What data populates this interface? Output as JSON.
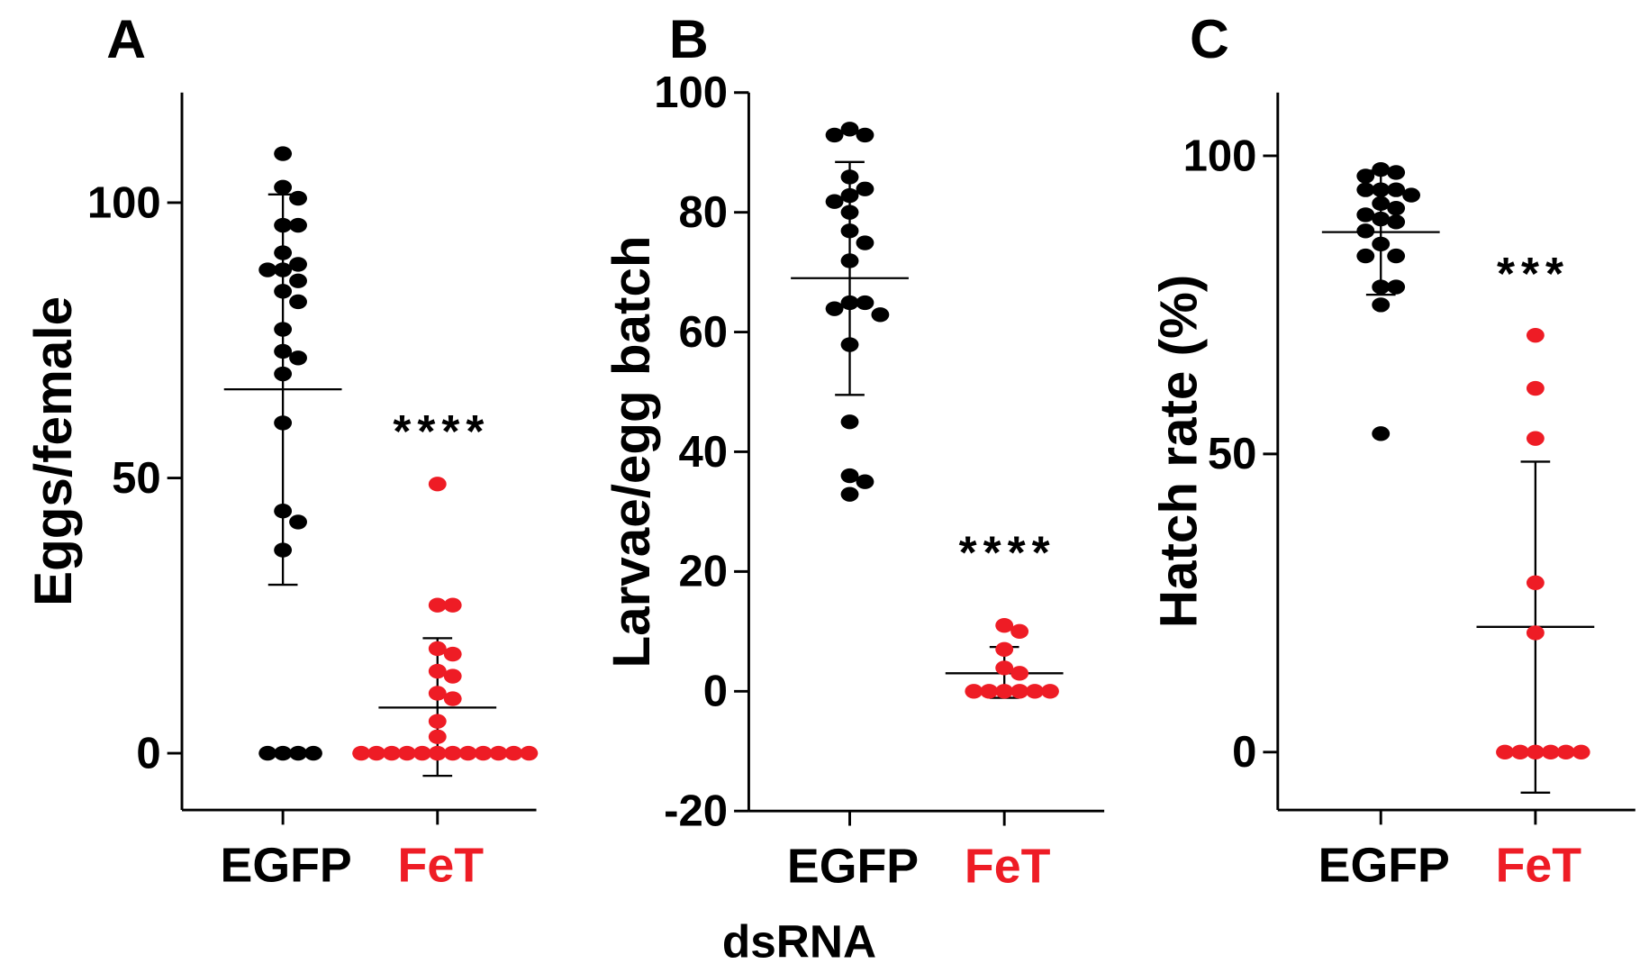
{
  "colors": {
    "egfp": "#000000",
    "fet": "#ee1c25",
    "axis": "#000000"
  },
  "xlabel_shared": "dsRNA",
  "chart_data": [
    {
      "type": "scatter",
      "panel": "A",
      "ylabel": "Eggs/female",
      "ylim": [
        -10.3,
        120
      ],
      "yticks": [
        0,
        50,
        100
      ],
      "ytick_labels": [
        "0",
        "50",
        "100"
      ],
      "categories": [
        "EGFP",
        "FeT"
      ],
      "significance": "****",
      "series": [
        {
          "name": "EGFP",
          "values": [
            108.9,
            102.8,
            100.8,
            95.9,
            95.9,
            90.9,
            88.8,
            87.8,
            87.8,
            85.8,
            83.9,
            82.0,
            77.0,
            73.0,
            71.8,
            68.9,
            60.0,
            44.0,
            42.0,
            36.9,
            0,
            0,
            0,
            0
          ],
          "mean": 66.1,
          "sd_low": 30.6,
          "sd_high": 101.5
        },
        {
          "name": "FeT",
          "values": [
            48.9,
            26.9,
            26.9,
            19.0,
            18.0,
            14.9,
            14.0,
            10.9,
            9.9,
            5.8,
            3.0,
            0,
            0,
            0,
            0,
            0,
            0,
            0,
            0,
            0,
            0,
            0,
            0
          ],
          "mean": 8.3,
          "sd_low": -4.1,
          "sd_high": 20.9
        }
      ]
    },
    {
      "type": "scatter",
      "panel": "B",
      "ylabel": "Larvae/egg batch",
      "ylim": [
        -20,
        100
      ],
      "yticks": [
        -20,
        0,
        20,
        40,
        60,
        80,
        100
      ],
      "ytick_labels": [
        "-20",
        "0",
        "20",
        "40",
        "60",
        "80",
        "100"
      ],
      "categories": [
        "EGFP",
        "FeT"
      ],
      "significance": "****",
      "series": [
        {
          "name": "EGFP",
          "values": [
            93.9,
            92.9,
            92.9,
            85.9,
            83.9,
            82.8,
            81.8,
            80.0,
            76.9,
            74.9,
            71.9,
            64.9,
            64.9,
            63.9,
            62.9,
            57.9,
            45.0,
            36.0,
            35.0,
            32.9
          ],
          "mean": 69.0,
          "sd_low": 49.5,
          "sd_high": 88.4
        },
        {
          "name": "FeT",
          "values": [
            11.0,
            10.0,
            7.0,
            3.9,
            3.0,
            0,
            0,
            0,
            0,
            0,
            0
          ],
          "mean": 3.0,
          "sd_low": -1.1,
          "sd_high": 7.4
        }
      ]
    },
    {
      "type": "scatter",
      "panel": "C",
      "ylabel": "Hatch rate (%)",
      "ylim": [
        -9.7,
        110.6
      ],
      "yticks": [
        0,
        50,
        100
      ],
      "ytick_labels": [
        "0",
        "50",
        "100"
      ],
      "categories": [
        "EGFP",
        "FeT"
      ],
      "significance": "***",
      "series": [
        {
          "name": "EGFP",
          "values": [
            97.7,
            97.2,
            96.6,
            94.3,
            94.3,
            94.3,
            93.4,
            92.0,
            91.2,
            90.1,
            89.4,
            88.9,
            87.4,
            85.2,
            83.2,
            83.2,
            78.0,
            78.0,
            75.0,
            53.4
          ],
          "mean": 87.2,
          "sd_low": 76.7,
          "sd_high": 97.5
        },
        {
          "name": "FeT",
          "values": [
            69.9,
            61.0,
            52.6,
            28.4,
            20.0,
            0,
            0,
            0,
            0,
            0,
            0
          ],
          "mean": 21.0,
          "sd_low": -6.8,
          "sd_high": 48.7
        }
      ]
    }
  ]
}
